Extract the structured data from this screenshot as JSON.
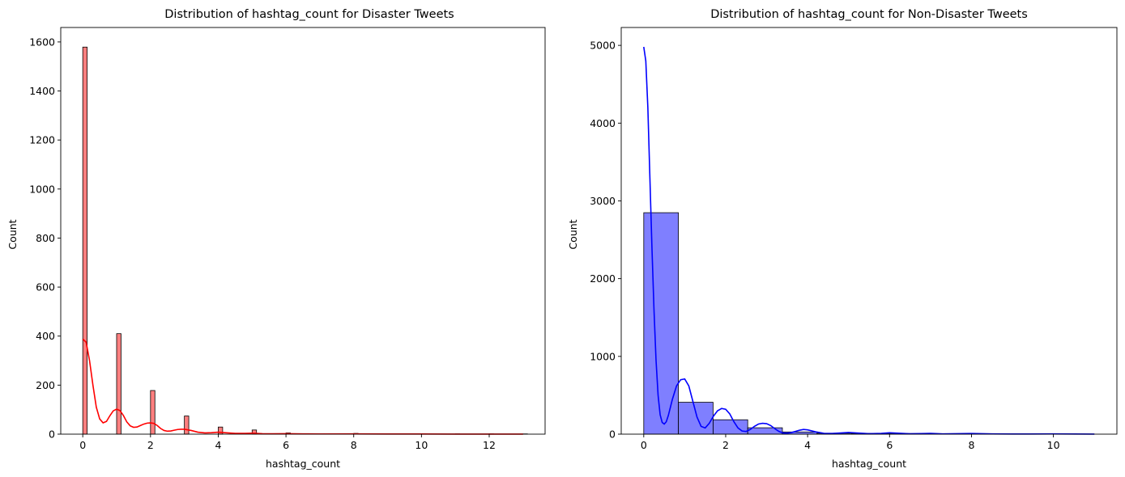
{
  "chart_data": [
    {
      "type": "histogram",
      "title": "Distribution of hashtag_count for Disaster Tweets",
      "xlabel": "hashtag_count",
      "ylabel": "Count",
      "xlim": [
        -0.65,
        13.65
      ],
      "ylim": [
        0,
        1659
      ],
      "xticks": [
        0,
        2,
        4,
        6,
        8,
        10,
        12
      ],
      "yticks": [
        0,
        200,
        400,
        600,
        800,
        1000,
        1200,
        1400,
        1600
      ],
      "bin_width": 0.13,
      "bar_color": "#ff0000",
      "bars": [
        {
          "x": 0,
          "y": 1579
        },
        {
          "x": 1,
          "y": 410
        },
        {
          "x": 2,
          "y": 178
        },
        {
          "x": 3,
          "y": 74
        },
        {
          "x": 4,
          "y": 29
        },
        {
          "x": 5,
          "y": 17
        },
        {
          "x": 6,
          "y": 5
        },
        {
          "x": 7,
          "y": 2
        },
        {
          "x": 8,
          "y": 3
        },
        {
          "x": 9,
          "y": 1
        },
        {
          "x": 10,
          "y": 1
        },
        {
          "x": 11,
          "y": 1
        },
        {
          "x": 12,
          "y": 1
        },
        {
          "x": 13,
          "y": 1
        }
      ],
      "kde": [
        [
          0,
          388
        ],
        [
          0.1,
          375
        ],
        [
          0.2,
          300
        ],
        [
          0.3,
          200
        ],
        [
          0.4,
          110
        ],
        [
          0.5,
          62
        ],
        [
          0.6,
          46
        ],
        [
          0.7,
          52
        ],
        [
          0.8,
          75
        ],
        [
          0.9,
          95
        ],
        [
          1.0,
          102
        ],
        [
          1.1,
          96
        ],
        [
          1.2,
          76
        ],
        [
          1.3,
          50
        ],
        [
          1.4,
          34
        ],
        [
          1.5,
          28
        ],
        [
          1.6,
          29
        ],
        [
          1.7,
          35
        ],
        [
          1.8,
          41
        ],
        [
          1.9,
          45
        ],
        [
          2.0,
          46
        ],
        [
          2.1,
          44
        ],
        [
          2.2,
          35
        ],
        [
          2.3,
          23
        ],
        [
          2.4,
          15
        ],
        [
          2.5,
          12
        ],
        [
          2.6,
          13
        ],
        [
          2.7,
          16
        ],
        [
          2.8,
          19
        ],
        [
          2.9,
          20
        ],
        [
          3.0,
          20
        ],
        [
          3.2,
          15
        ],
        [
          3.4,
          8
        ],
        [
          3.6,
          5
        ],
        [
          3.8,
          6
        ],
        [
          4.0,
          8
        ],
        [
          4.2,
          6
        ],
        [
          4.5,
          3
        ],
        [
          4.8,
          3
        ],
        [
          5.0,
          4
        ],
        [
          5.3,
          2
        ],
        [
          5.6,
          1.5
        ],
        [
          6.0,
          2
        ],
        [
          6.5,
          1
        ],
        [
          7.0,
          0.8
        ],
        [
          8.0,
          1
        ],
        [
          9.0,
          0.5
        ],
        [
          10.0,
          0.5
        ],
        [
          11.0,
          0.3
        ],
        [
          12.0,
          0.3
        ],
        [
          13.0,
          0.2
        ]
      ],
      "kde_color": "#ff0000"
    },
    {
      "type": "histogram",
      "title": "Distribution of hashtag_count for Non-Disaster Tweets",
      "xlabel": "hashtag_count",
      "ylabel": "Count",
      "xlim": [
        -0.55,
        11.55
      ],
      "ylim": [
        0,
        5230
      ],
      "xticks": [
        0,
        2,
        4,
        6,
        8,
        10
      ],
      "yticks": [
        0,
        1000,
        2000,
        3000,
        4000,
        5000
      ],
      "bin_width": 0.846,
      "bar_color": "#0000ff",
      "bars": [
        {
          "x": 0,
          "y": 2848
        },
        {
          "x": 0.846,
          "y": 410
        },
        {
          "x": 1.692,
          "y": 185
        },
        {
          "x": 2.538,
          "y": 82
        },
        {
          "x": 3.385,
          "y": 28
        },
        {
          "x": 4.231,
          "y": 12
        },
        {
          "x": 5.077,
          "y": 10
        },
        {
          "x": 5.923,
          "y": 8
        },
        {
          "x": 6.769,
          "y": 4
        },
        {
          "x": 7.615,
          "y": 3
        },
        {
          "x": 8.462,
          "y": 2
        },
        {
          "x": 9.308,
          "y": 1
        },
        {
          "x": 10.154,
          "y": 1
        }
      ],
      "kde": [
        [
          0,
          4980
        ],
        [
          0.05,
          4800
        ],
        [
          0.1,
          4200
        ],
        [
          0.15,
          3300
        ],
        [
          0.2,
          2400
        ],
        [
          0.25,
          1600
        ],
        [
          0.3,
          950
        ],
        [
          0.35,
          500
        ],
        [
          0.4,
          250
        ],
        [
          0.45,
          150
        ],
        [
          0.5,
          130
        ],
        [
          0.55,
          160
        ],
        [
          0.6,
          240
        ],
        [
          0.7,
          450
        ],
        [
          0.8,
          620
        ],
        [
          0.9,
          700
        ],
        [
          1.0,
          710
        ],
        [
          1.1,
          620
        ],
        [
          1.2,
          420
        ],
        [
          1.3,
          220
        ],
        [
          1.4,
          100
        ],
        [
          1.5,
          80
        ],
        [
          1.6,
          140
        ],
        [
          1.7,
          230
        ],
        [
          1.8,
          300
        ],
        [
          1.9,
          330
        ],
        [
          2.0,
          320
        ],
        [
          2.1,
          260
        ],
        [
          2.2,
          160
        ],
        [
          2.3,
          80
        ],
        [
          2.4,
          40
        ],
        [
          2.5,
          35
        ],
        [
          2.6,
          60
        ],
        [
          2.7,
          100
        ],
        [
          2.8,
          130
        ],
        [
          2.9,
          140
        ],
        [
          3.0,
          135
        ],
        [
          3.1,
          110
        ],
        [
          3.2,
          70
        ],
        [
          3.3,
          35
        ],
        [
          3.4,
          15
        ],
        [
          3.5,
          12
        ],
        [
          3.6,
          20
        ],
        [
          3.7,
          35
        ],
        [
          3.8,
          50
        ],
        [
          3.9,
          60
        ],
        [
          4.0,
          55
        ],
        [
          4.2,
          30
        ],
        [
          4.4,
          10
        ],
        [
          4.6,
          8
        ],
        [
          4.8,
          15
        ],
        [
          5.0,
          22
        ],
        [
          5.2,
          15
        ],
        [
          5.5,
          6
        ],
        [
          5.8,
          10
        ],
        [
          6.0,
          18
        ],
        [
          6.2,
          12
        ],
        [
          6.5,
          5
        ],
        [
          7.0,
          10
        ],
        [
          7.3,
          4
        ],
        [
          8.0,
          8
        ],
        [
          8.5,
          3
        ],
        [
          9.0,
          2
        ],
        [
          10.0,
          3
        ],
        [
          11.0,
          1
        ]
      ],
      "kde_color": "#0000ff"
    }
  ]
}
